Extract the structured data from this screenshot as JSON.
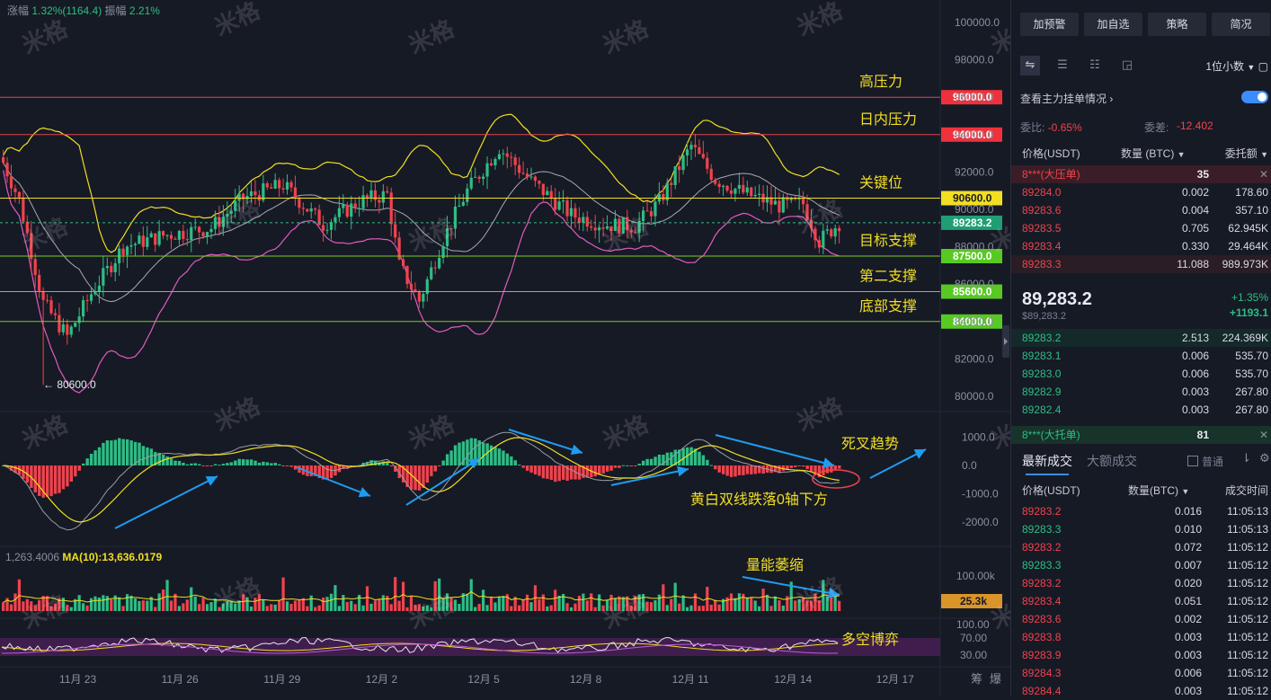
{
  "chart": {
    "info": {
      "change_label": "涨幅",
      "change_value": "1.32%(1164.4)",
      "amp_label": "振幅",
      "amp_value": "2.21%"
    },
    "watermark_text": "米格",
    "low_marker": "← 80600.0",
    "price_axis": [
      "100000.0",
      "98000.0",
      "96000.0",
      "94000.0",
      "92000.0",
      "90000.0",
      "88000.0",
      "86000.0",
      "84000.0",
      "82000.0",
      "80000.0"
    ],
    "price_ticks": [
      100000,
      98000,
      96000,
      94000,
      92000,
      90000,
      88000,
      86000,
      84000,
      82000,
      80000
    ],
    "current_price_tag": "89283.2",
    "current_price_value": 89283.2,
    "levels": [
      {
        "label": "高压力",
        "value": 96000,
        "tag": "96000.0",
        "tag_color": "#f0313b",
        "line_color": "#e04450"
      },
      {
        "label": "日内压力",
        "value": 94000,
        "tag": "94000.0",
        "tag_color": "#f0313b",
        "line_color": "#e04450"
      },
      {
        "label": "关键位",
        "value": 90600,
        "tag": "90600.0",
        "tag_color": "#f2de22",
        "line_color": "#f2de22"
      },
      {
        "label": "目标支撑",
        "value": 87500,
        "tag": "87500.0",
        "tag_color": "#58c922",
        "line_color": "#7ccc2a"
      },
      {
        "label": "第二支撑",
        "value": 85600,
        "tag": "85600.0",
        "tag_color": "#58c922",
        "line_color": "#7ccc2a"
      },
      {
        "label": "底部支撑",
        "value": 84000,
        "tag": "84000.0",
        "tag_color": "#58c922",
        "line_color": "#7ccc2a"
      }
    ],
    "macd_axis": [
      "1000.0",
      "0.0",
      "-1000.0",
      "-2000.0"
    ],
    "macd_ticks": [
      1000,
      0,
      -1000,
      -2000
    ],
    "macd_annotations": {
      "death_cross": "死叉趋势",
      "lines_below_zero": "黄白双线跌落0轴下方"
    },
    "volume": {
      "legend_prefix": "1,263.4006",
      "legend_ma": "MA(10):13,636.0179",
      "axis_label": "100.00k",
      "current_tag": "25.3k",
      "annotation": "量能萎缩"
    },
    "rsi": {
      "axis": [
        "100.00",
        "70.00",
        "30.00"
      ],
      "annotation": "多空博弈"
    },
    "x_axis": [
      "11月 23",
      "11月 26",
      "11月 29",
      "12月 2",
      "12月 5",
      "12月 8",
      "12月 11",
      "12月 14",
      "12月 17"
    ],
    "corner_labels": [
      "筹",
      "爆"
    ],
    "colors": {
      "up": "#2ebd85",
      "down": "#f0434d",
      "boll_mid": "#a7a9b3",
      "boll_upper": "#f2de22",
      "boll_lower": "#e25bbf",
      "annotation": "#f2de22",
      "arrow": "#1f9cf0"
    }
  },
  "panel": {
    "top_buttons": [
      "加预警",
      "加自选",
      "策略",
      "简况"
    ],
    "decimal_select": "1位小数",
    "depth_label": "查看主力挂单情况",
    "ratio_label": "委比:",
    "ratio_value": "-0.65%",
    "diff_label": "委差:",
    "diff_value": "-12.402",
    "headers": {
      "price": "价格(USDT)",
      "qty": "数量 (BTC)",
      "total": "委托额"
    },
    "ask_band": {
      "label": "8***(大压单)",
      "qty": "35"
    },
    "asks": [
      {
        "price": "89284.0",
        "qty": "0.002",
        "total": "178.60"
      },
      {
        "price": "89283.6",
        "qty": "0.004",
        "total": "357.10"
      },
      {
        "price": "89283.5",
        "qty": "0.705",
        "total": "62.945K"
      },
      {
        "price": "89283.4",
        "qty": "0.330",
        "total": "29.464K"
      },
      {
        "price": "89283.3",
        "qty": "11.088",
        "total": "989.973K"
      }
    ],
    "mid": {
      "price": "89,283.2",
      "sub": "$89,283.2",
      "pct": "+1.35%",
      "change": "+1193.1"
    },
    "bids": [
      {
        "price": "89283.2",
        "qty": "2.513",
        "total": "224.369K"
      },
      {
        "price": "89283.1",
        "qty": "0.006",
        "total": "535.70"
      },
      {
        "price": "89283.0",
        "qty": "0.006",
        "total": "535.70"
      },
      {
        "price": "89282.9",
        "qty": "0.003",
        "total": "267.80"
      },
      {
        "price": "89282.4",
        "qty": "0.003",
        "total": "267.80"
      }
    ],
    "bid_band": {
      "label": "8***(大托单)",
      "qty": "81"
    },
    "tabs": {
      "latest": "最新成交",
      "large": "大额成交",
      "normal": "普通"
    },
    "trade_headers": {
      "price": "价格(USDT)",
      "qty": "数量(BTC)",
      "time": "成交时间"
    },
    "trades": [
      {
        "price": "89283.2",
        "qty": "0.016",
        "time": "11:05:13",
        "side": "sell"
      },
      {
        "price": "89283.3",
        "qty": "0.010",
        "time": "11:05:13",
        "side": "buy"
      },
      {
        "price": "89283.2",
        "qty": "0.072",
        "time": "11:05:12",
        "side": "sell"
      },
      {
        "price": "89283.3",
        "qty": "0.007",
        "time": "11:05:12",
        "side": "buy"
      },
      {
        "price": "89283.2",
        "qty": "0.020",
        "time": "11:05:12",
        "side": "sell"
      },
      {
        "price": "89283.4",
        "qty": "0.051",
        "time": "11:05:12",
        "side": "sell"
      },
      {
        "price": "89283.6",
        "qty": "0.002",
        "time": "11:05:12",
        "side": "sell"
      },
      {
        "price": "89283.8",
        "qty": "0.003",
        "time": "11:05:12",
        "side": "sell"
      },
      {
        "price": "89283.9",
        "qty": "0.003",
        "time": "11:05:12",
        "side": "sell"
      },
      {
        "price": "89284.3",
        "qty": "0.006",
        "time": "11:05:12",
        "side": "sell"
      },
      {
        "price": "89284.4",
        "qty": "0.003",
        "time": "11:05:12",
        "side": "sell"
      }
    ]
  }
}
